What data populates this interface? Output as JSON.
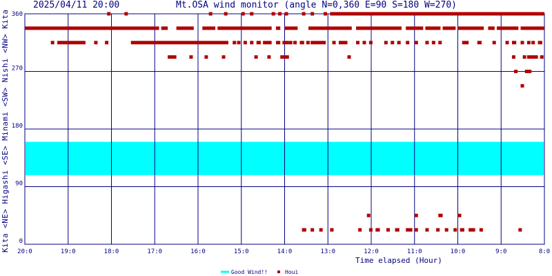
{
  "chart_data": {
    "type": "scatter",
    "date": "2025/04/11 20:00",
    "title": "Mt.OSA wind monitor (angle N=0,360 E=90 S=180 W=270)",
    "ylim": [
      0,
      360
    ],
    "yticks": [
      0,
      90,
      180,
      270,
      360
    ],
    "ylabel_segments": [
      "Kita",
      "<NE>",
      "Higashi",
      "<SE>",
      "Minami",
      "<SW>",
      "Nishi",
      "<NW>",
      "Kita"
    ],
    "xlabel": "Time elapsed (Hour)",
    "xlim": [
      0,
      12
    ],
    "xtick_labels": [
      "20:0",
      "19:0",
      "18:0",
      "17:0",
      "16:0",
      "15:0",
      "14:0",
      "13:0",
      "12:0",
      "11:0",
      "10:0",
      "9:0",
      "8:0"
    ],
    "grid": true,
    "good_wind_band": {
      "name": "Good Wind!!",
      "from": 108,
      "to": 160,
      "color": "#00ffff"
    },
    "legend": [
      {
        "name": "Good Wind!!",
        "color": "#00ffff",
        "marker": "line"
      },
      {
        "name": "Houi",
        "color": "#b00000",
        "marker": "square"
      }
    ],
    "colors": {
      "grid": "#000080",
      "points": "#b00000",
      "background": "#ffffff"
    },
    "rows": [
      {
        "angle": 337.5,
        "runs": [
          [
            0.0,
            3.1
          ],
          [
            3.15,
            3.3
          ],
          [
            3.5,
            3.9
          ],
          [
            4.1,
            4.4
          ],
          [
            4.45,
            5.7
          ],
          [
            5.8,
            5.9
          ],
          [
            6.0,
            6.3
          ],
          [
            6.55,
            7.1
          ],
          [
            7.1,
            7.55
          ],
          [
            7.65,
            8.7
          ],
          [
            8.8,
            9.2
          ],
          [
            9.25,
            9.6
          ],
          [
            9.65,
            9.95
          ],
          [
            10.0,
            10.6
          ],
          [
            10.7,
            10.85
          ],
          [
            10.9,
            11.4
          ],
          [
            11.45,
            12.0
          ]
        ]
      },
      {
        "angle": 360,
        "runs": [
          [
            1.9,
            1.95
          ],
          [
            2.3,
            2.35
          ],
          [
            4.25,
            4.3
          ],
          [
            4.6,
            4.65
          ],
          [
            5.0,
            5.05
          ],
          [
            5.2,
            5.25
          ],
          [
            5.7,
            5.75
          ],
          [
            5.85,
            5.9
          ],
          [
            6.0,
            6.05
          ],
          [
            6.4,
            6.45
          ],
          [
            6.6,
            6.65
          ],
          [
            6.9,
            6.95
          ],
          [
            7.05,
            12.0
          ]
        ]
      },
      {
        "angle": 315,
        "runs": [
          [
            0.6,
            0.65
          ],
          [
            0.75,
            1.4
          ],
          [
            1.6,
            1.65
          ],
          [
            1.85,
            1.9
          ],
          [
            2.45,
            4.7
          ],
          [
            4.8,
            4.85
          ],
          [
            4.9,
            4.95
          ],
          [
            5.05,
            5.1
          ],
          [
            5.2,
            5.25
          ],
          [
            5.35,
            5.45
          ],
          [
            5.5,
            5.7
          ],
          [
            5.8,
            5.9
          ],
          [
            5.95,
            6.1
          ],
          [
            6.1,
            6.15
          ],
          [
            6.2,
            6.25
          ],
          [
            6.35,
            6.45
          ],
          [
            6.5,
            6.55
          ],
          [
            6.6,
            6.95
          ],
          [
            7.1,
            7.15
          ],
          [
            7.25,
            7.45
          ],
          [
            7.65,
            7.7
          ],
          [
            7.8,
            7.85
          ],
          [
            7.95,
            8.0
          ],
          [
            8.3,
            8.35
          ],
          [
            8.45,
            8.5
          ],
          [
            8.6,
            8.65
          ],
          [
            8.8,
            8.85
          ],
          [
            9.0,
            9.05
          ],
          [
            9.25,
            9.3
          ],
          [
            9.4,
            9.45
          ],
          [
            9.55,
            9.6
          ],
          [
            10.1,
            10.25
          ],
          [
            10.45,
            10.55
          ],
          [
            10.8,
            10.85
          ],
          [
            11.1,
            11.15
          ],
          [
            11.25,
            11.35
          ],
          [
            11.45,
            11.5
          ],
          [
            11.6,
            11.65
          ],
          [
            11.7,
            11.75
          ],
          [
            11.85,
            11.95
          ]
        ]
      },
      {
        "angle": 292.5,
        "runs": [
          [
            3.3,
            3.5
          ],
          [
            3.8,
            3.85
          ],
          [
            4.15,
            4.2
          ],
          [
            4.55,
            4.6
          ],
          [
            5.3,
            5.35
          ],
          [
            5.6,
            5.65
          ],
          [
            5.9,
            6.1
          ],
          [
            7.45,
            7.5
          ],
          [
            11.25,
            11.3
          ],
          [
            11.5,
            11.55
          ],
          [
            11.6,
            11.85
          ],
          [
            11.9,
            11.95
          ]
        ]
      },
      {
        "angle": 270,
        "runs": [
          [
            11.3,
            11.35
          ],
          [
            11.55,
            11.7
          ]
        ]
      },
      {
        "angle": 247.5,
        "runs": [
          [
            11.45,
            11.5
          ]
        ]
      },
      {
        "angle": 45,
        "runs": [
          [
            7.9,
            7.95
          ],
          [
            9.0,
            9.05
          ],
          [
            9.55,
            9.65
          ],
          [
            10.0,
            10.05
          ]
        ]
      },
      {
        "angle": 22.5,
        "runs": [
          [
            6.4,
            6.5
          ],
          [
            6.6,
            6.65
          ],
          [
            6.8,
            6.85
          ],
          [
            7.05,
            7.1
          ],
          [
            7.7,
            7.75
          ],
          [
            7.95,
            8.0
          ],
          [
            8.1,
            8.2
          ],
          [
            8.35,
            8.4
          ],
          [
            8.55,
            8.65
          ],
          [
            8.8,
            8.95
          ],
          [
            9.0,
            9.05
          ],
          [
            9.25,
            9.3
          ],
          [
            9.5,
            9.55
          ],
          [
            9.7,
            9.75
          ],
          [
            9.9,
            9.95
          ],
          [
            10.05,
            10.15
          ],
          [
            10.25,
            10.4
          ],
          [
            10.5,
            10.55
          ],
          [
            11.4,
            11.45
          ]
        ]
      }
    ]
  }
}
